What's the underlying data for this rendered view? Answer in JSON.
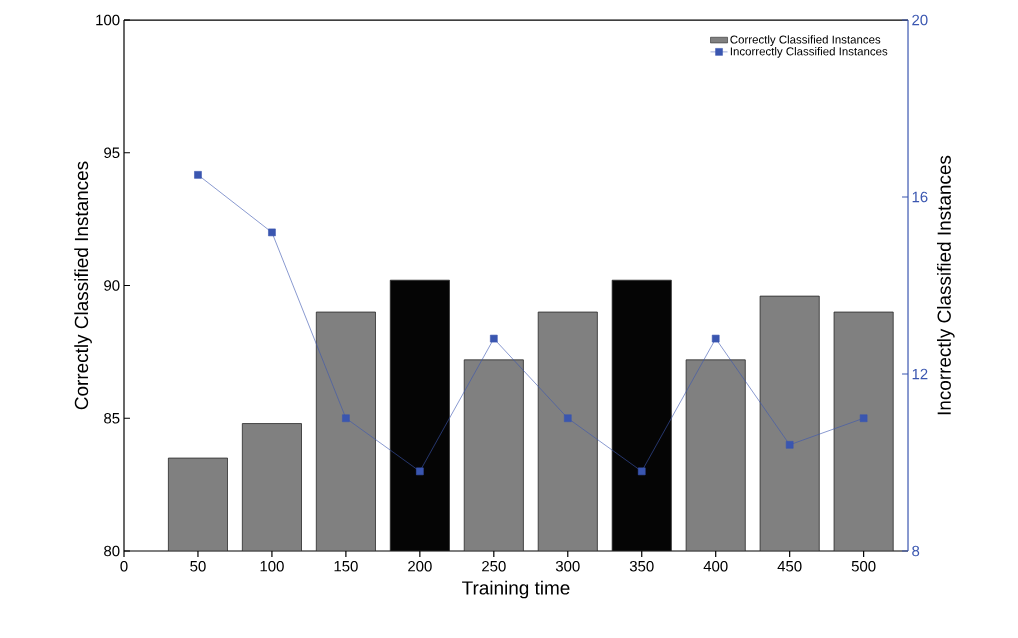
{
  "chart_data": {
    "type": "bar",
    "xlabel": "Training time",
    "ylabel": "Correctly Classified Instances",
    "y2label": "Incorrectly Classified Instances",
    "x": [
      50,
      100,
      150,
      200,
      250,
      300,
      350,
      400,
      450,
      500
    ],
    "xlim": [
      0,
      530
    ],
    "xticks": [
      0,
      50,
      100,
      150,
      200,
      250,
      300,
      350,
      400,
      450,
      500
    ],
    "ylim": [
      80,
      100
    ],
    "yticks": [
      80,
      85,
      90,
      95,
      100
    ],
    "y2lim": [
      8,
      20
    ],
    "y2ticks": [
      8,
      12,
      16,
      20
    ],
    "legend": "top right",
    "marker": "square",
    "series": [
      {
        "name": "Correctly Classified Instances",
        "color": "#808080",
        "colors": [
          "#808080",
          "#808080",
          "#808080",
          "#050505",
          "#808080",
          "#808080",
          "#050505",
          "#808080",
          "#808080",
          "#808080"
        ],
        "values": [
          83.5,
          84.8,
          89.0,
          90.2,
          87.2,
          89.0,
          90.2,
          87.2,
          89.6,
          89.0
        ]
      },
      {
        "name": "Incorrectly Classified Instances",
        "type": "line",
        "axis": "y2",
        "color": "#3a56b0",
        "values": [
          16.5,
          15.2,
          11.0,
          9.8,
          12.8,
          11.0,
          9.8,
          12.8,
          10.4,
          11.0
        ]
      }
    ]
  }
}
